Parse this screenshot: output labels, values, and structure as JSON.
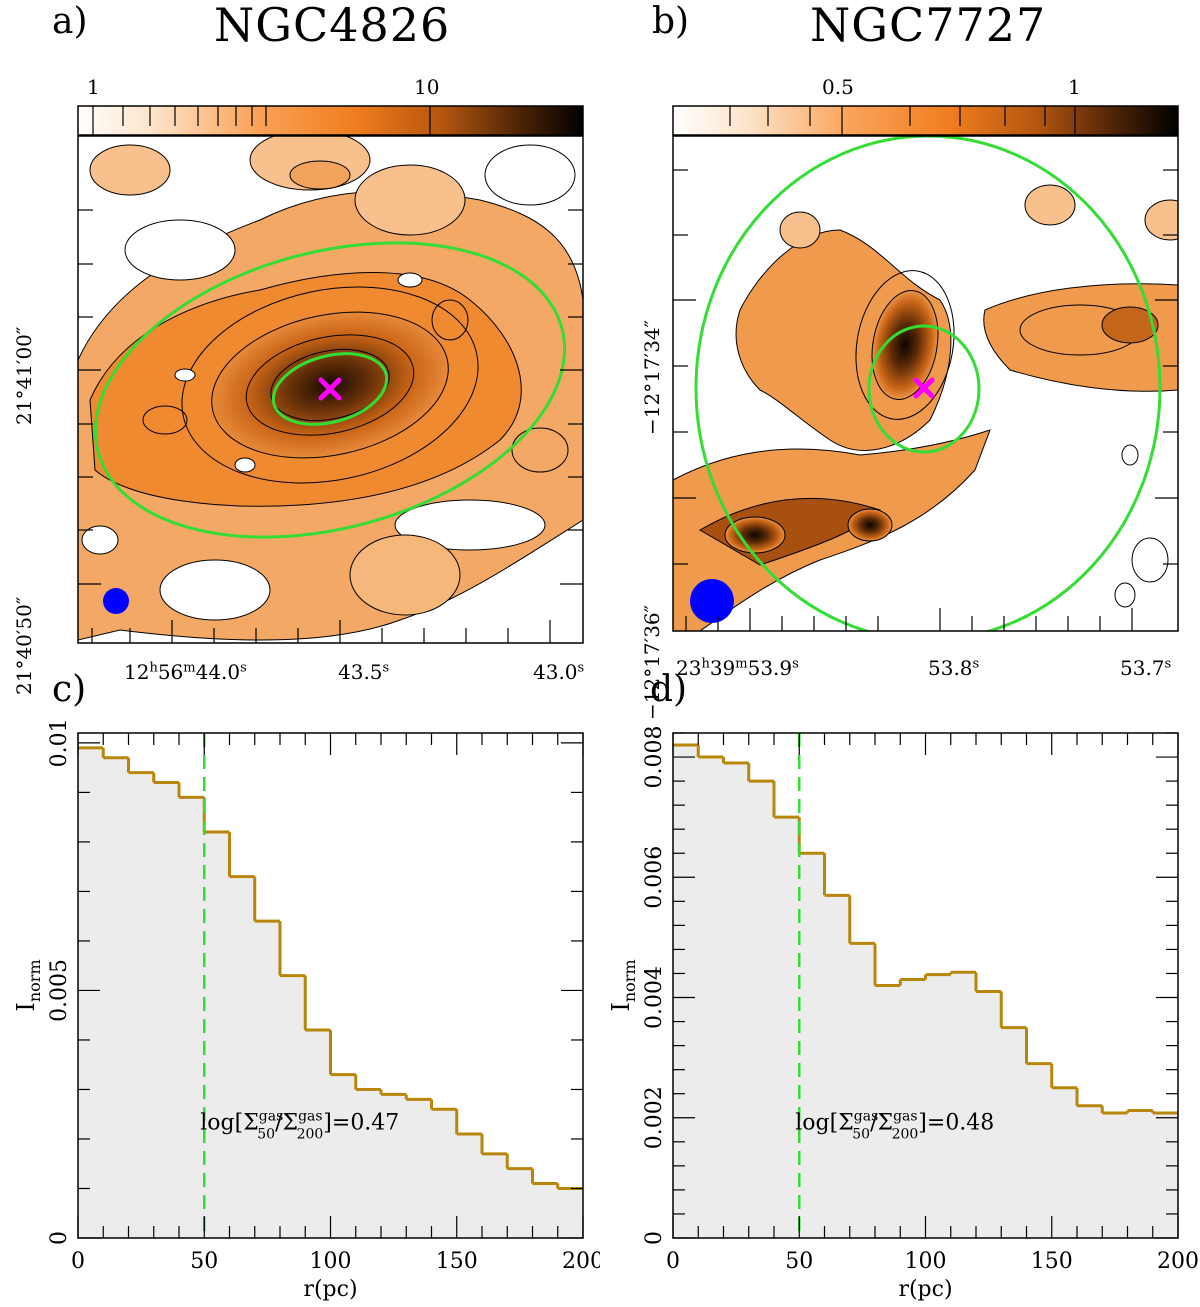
{
  "panels": {
    "a": {
      "letter": "a)",
      "title": "NGC4826",
      "colorbar": {
        "labels": [
          "1",
          "10"
        ]
      },
      "ra_ticks": [
        {
          "h": "12",
          "m": "56",
          "s": "44.0"
        },
        {
          "s": "43.5"
        },
        {
          "s": "43.0"
        }
      ],
      "dec_ticks": [
        "21°41′00″",
        "21°40′50″"
      ]
    },
    "b": {
      "letter": "b)",
      "title": "NGC7727",
      "colorbar": {
        "labels": [
          "0.5",
          "1"
        ]
      },
      "ra_ticks": [
        {
          "h": "23",
          "m": "39",
          "s": "53.9"
        },
        {
          "s": "53.8"
        },
        {
          "s": "53.7"
        }
      ],
      "dec_ticks": [
        "−12°17′34″",
        "−12°17′36″"
      ]
    }
  },
  "colors": {
    "cmap": [
      "#ffffff",
      "#fcd9b6",
      "#f9a35a",
      "#f07d1e",
      "#b4560f",
      "#5a2a08",
      "#000000"
    ],
    "ellipse": "#33dd33",
    "center_marker": "#ff00ff",
    "beam": "#0000ff",
    "histogram": "#b8860b",
    "fill": "#ececec",
    "vline": "#33dd33"
  },
  "chart_data": [
    {
      "panel_letter": "c)",
      "type": "line",
      "step": true,
      "xlabel": "r(pc)",
      "ylabel": "I",
      "ylabel_sub": "norm",
      "xlim": [
        0,
        200
      ],
      "ylim": [
        0,
        0.0102
      ],
      "xticks": [
        0,
        50,
        100,
        150,
        200
      ],
      "xtick_labels": [
        "0",
        "50",
        "100",
        "150",
        "200"
      ],
      "yticks": [
        0,
        0.005,
        0.01
      ],
      "ytick_labels": [
        "0",
        "0.005",
        "0.01"
      ],
      "vline_x": 50,
      "bin_edges": [
        0,
        10,
        20,
        30,
        40,
        50,
        60,
        70,
        80,
        90,
        100,
        110,
        120,
        130,
        140,
        150,
        160,
        170,
        180,
        190,
        200
      ],
      "values": [
        0.0099,
        0.0097,
        0.0094,
        0.0092,
        0.0089,
        0.0082,
        0.0073,
        0.0064,
        0.0053,
        0.0042,
        0.0033,
        0.003,
        0.0029,
        0.0028,
        0.0026,
        0.0021,
        0.0017,
        0.0014,
        0.0011,
        0.001
      ],
      "annotation": {
        "prefix": "log[Σ",
        "num_sup": "gas",
        "num_sub": "50",
        "slash": "/Σ",
        "den_sup": "gas",
        "den_sub": "200",
        "suffix": "]=0.47"
      }
    },
    {
      "panel_letter": "d)",
      "type": "line",
      "step": true,
      "xlabel": "r(pc)",
      "ylabel": "I",
      "ylabel_sub": "norm",
      "xlim": [
        0,
        200
      ],
      "ylim": [
        0,
        0.0084
      ],
      "xticks": [
        0,
        50,
        100,
        150,
        200
      ],
      "xtick_labels": [
        "0",
        "50",
        "100",
        "150",
        "200"
      ],
      "yticks": [
        0,
        0.002,
        0.004,
        0.006,
        0.008
      ],
      "ytick_labels": [
        "0",
        "0.002",
        "0.004",
        "0.006",
        "0.008"
      ],
      "vline_x": 50,
      "bin_edges": [
        0,
        10,
        20,
        30,
        40,
        50,
        60,
        70,
        80,
        90,
        100,
        110,
        120,
        130,
        140,
        150,
        160,
        170,
        180,
        190,
        200
      ],
      "values": [
        0.0082,
        0.008,
        0.0079,
        0.0076,
        0.007,
        0.0064,
        0.0057,
        0.0049,
        0.0042,
        0.0043,
        0.00438,
        0.00442,
        0.0041,
        0.0035,
        0.0029,
        0.0025,
        0.0022,
        0.00208,
        0.00212,
        0.00208
      ],
      "annotation": {
        "prefix": "log[Σ",
        "num_sup": "gas",
        "num_sub": "50",
        "slash": "/Σ",
        "den_sup": "gas",
        "den_sub": "200",
        "suffix": "]=0.48"
      }
    }
  ]
}
